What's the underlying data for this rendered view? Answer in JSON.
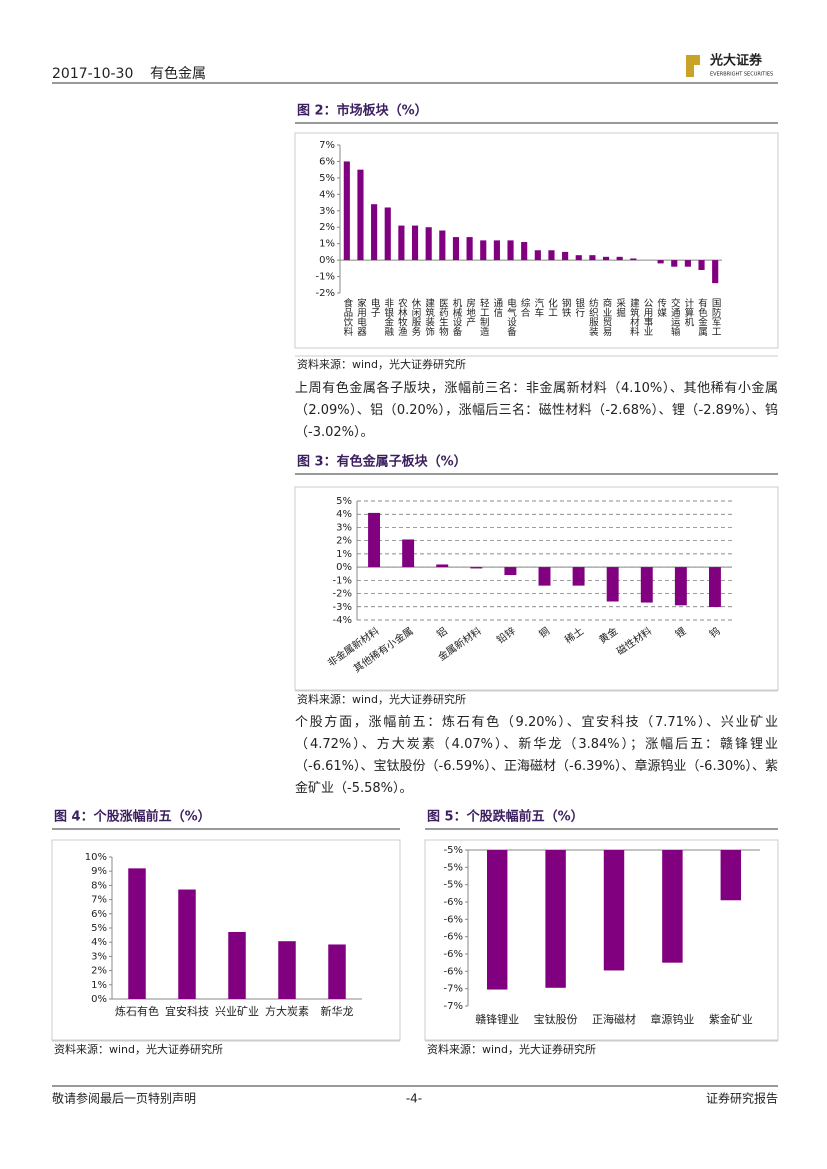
{
  "header": {
    "date": "2017-10-30",
    "industry": "有色金属",
    "logo_cn": "光大证券",
    "logo_en": "EVERBRIGHT SECURITIES"
  },
  "paragraphs": [
    "上周有色金属各子版块，涨幅前三名：非金属新材料（4.10%）、其他稀有小金属（2.09%）、铝（0.20%），涨幅后三名：磁性材料（-2.68%）、锂（-2.89%）、钨（-3.02%）。",
    "个股方面，涨幅前五：炼石有色（9.20%）、宜安科技（7.71%）、兴业矿业（4.72%）、方大炭素（4.07%）、新华龙（3.84%）；涨幅后五：赣锋锂业（-6.61%）、宝钛股份（-6.59%）、正海磁材（-6.39%）、章源钨业（-6.30%）、紫金矿业（-5.58%）。"
  ],
  "chart_data": [
    {
      "type": "bar",
      "title": "图 2：市场板块（%）",
      "source": "资料来源：wind，光大证券研究所",
      "color": "#800080",
      "grid": false,
      "categories": [
        "食品饮料",
        "家用电器",
        "电子",
        "非银金融",
        "农林牧渔",
        "休闲服务",
        "建筑装饰",
        "医药生物",
        "机械设备",
        "房地产",
        "轻工制造",
        "通信",
        "电气设备",
        "综合",
        "汽车",
        "化工",
        "钢铁",
        "银行",
        "纺织服装",
        "商业贸易",
        "采掘",
        "建筑材料",
        "公用事业",
        "传媒",
        "交通运输",
        "计算机",
        "有色金属",
        "国防军工"
      ],
      "values": [
        6.0,
        5.5,
        3.4,
        3.2,
        2.1,
        2.1,
        2.0,
        1.8,
        1.4,
        1.4,
        1.2,
        1.2,
        1.2,
        1.1,
        0.6,
        0.6,
        0.5,
        0.3,
        0.3,
        0.2,
        0.2,
        0.1,
        0.0,
        -0.2,
        -0.4,
        -0.4,
        -0.6,
        -1.4
      ],
      "ylim": [
        -2,
        7
      ],
      "yticks": [
        {
          "value": -2,
          "label": "-2%"
        },
        {
          "value": -1,
          "label": "-1%"
        },
        {
          "value": 0,
          "label": "0%"
        },
        {
          "value": 1,
          "label": "1%"
        },
        {
          "value": 2,
          "label": "2%"
        },
        {
          "value": 3,
          "label": "3%"
        },
        {
          "value": 4,
          "label": "4%"
        },
        {
          "value": 5,
          "label": "5%"
        },
        {
          "value": 6,
          "label": "6%"
        },
        {
          "value": 7,
          "label": "7%"
        }
      ]
    },
    {
      "type": "bar",
      "title": "图 3：有色金属子板块（%）",
      "source": "资料来源：wind，光大证券研究所",
      "color": "#800080",
      "grid": true,
      "categories": [
        "非金属新材料",
        "其他稀有小金属",
        "铝",
        "金属新材料",
        "铅锌",
        "铜",
        "稀土",
        "黄金",
        "磁性材料",
        "锂",
        "钨"
      ],
      "values": [
        4.1,
        2.09,
        0.2,
        -0.1,
        -0.6,
        -1.4,
        -1.4,
        -2.6,
        -2.68,
        -2.89,
        -3.02
      ],
      "ylim": [
        -4,
        5
      ],
      "yticks": [
        {
          "value": -4,
          "label": "-4%"
        },
        {
          "value": -3,
          "label": "-3%"
        },
        {
          "value": -2,
          "label": "-2%"
        },
        {
          "value": -1,
          "label": "-1%"
        },
        {
          "value": 0,
          "label": "0%"
        },
        {
          "value": 1,
          "label": "1%"
        },
        {
          "value": 2,
          "label": "2%"
        },
        {
          "value": 3,
          "label": "3%"
        },
        {
          "value": 4,
          "label": "4%"
        },
        {
          "value": 5,
          "label": "5%"
        }
      ]
    },
    {
      "type": "bar",
      "title": "图 4：个股涨幅前五（%）",
      "source": "资料来源：wind，光大证券研究所",
      "color": "#800080",
      "grid": false,
      "categories": [
        "炼石有色",
        "宜安科技",
        "兴业矿业",
        "方大炭素",
        "新华龙"
      ],
      "values": [
        9.2,
        7.71,
        4.72,
        4.07,
        3.84
      ],
      "ylim": [
        0,
        10
      ],
      "yticks": [
        {
          "value": 0,
          "label": "0%"
        },
        {
          "value": 1,
          "label": "1%"
        },
        {
          "value": 2,
          "label": "2%"
        },
        {
          "value": 3,
          "label": "3%"
        },
        {
          "value": 4,
          "label": "4%"
        },
        {
          "value": 5,
          "label": "5%"
        },
        {
          "value": 6,
          "label": "6%"
        },
        {
          "value": 7,
          "label": "7%"
        },
        {
          "value": 8,
          "label": "8%"
        },
        {
          "value": 9,
          "label": "9%"
        },
        {
          "value": 10,
          "label": "10%"
        }
      ]
    },
    {
      "type": "bar",
      "title": "图 5：个股跌幅前五（%）",
      "source": "资料来源：wind，光大证券研究所",
      "color": "#800080",
      "grid": false,
      "categories": [
        "赣锋锂业",
        "宝钛股份",
        "正海磁材",
        "章源钨业",
        "紫金矿业"
      ],
      "values": [
        -6.61,
        -6.59,
        -6.39,
        -6.3,
        -5.58
      ],
      "ylim": [
        -6.8,
        -5.0
      ],
      "yticks": [
        {
          "value": -5.0,
          "label": "-5%"
        },
        {
          "value": -5.2,
          "label": "-5%"
        },
        {
          "value": -5.4,
          "label": "-5%"
        },
        {
          "value": -5.6,
          "label": "-6%"
        },
        {
          "value": -5.8,
          "label": "-6%"
        },
        {
          "value": -6.0,
          "label": "-6%"
        },
        {
          "value": -6.2,
          "label": "-6%"
        },
        {
          "value": -6.4,
          "label": "-6%"
        },
        {
          "value": -6.6,
          "label": "-7%"
        },
        {
          "value": -6.8,
          "label": "-7%"
        }
      ]
    }
  ],
  "footer": {
    "disclaimer": "敬请参阅最后一页特别声明",
    "page": "-4-",
    "report_type": "证券研究报告"
  }
}
